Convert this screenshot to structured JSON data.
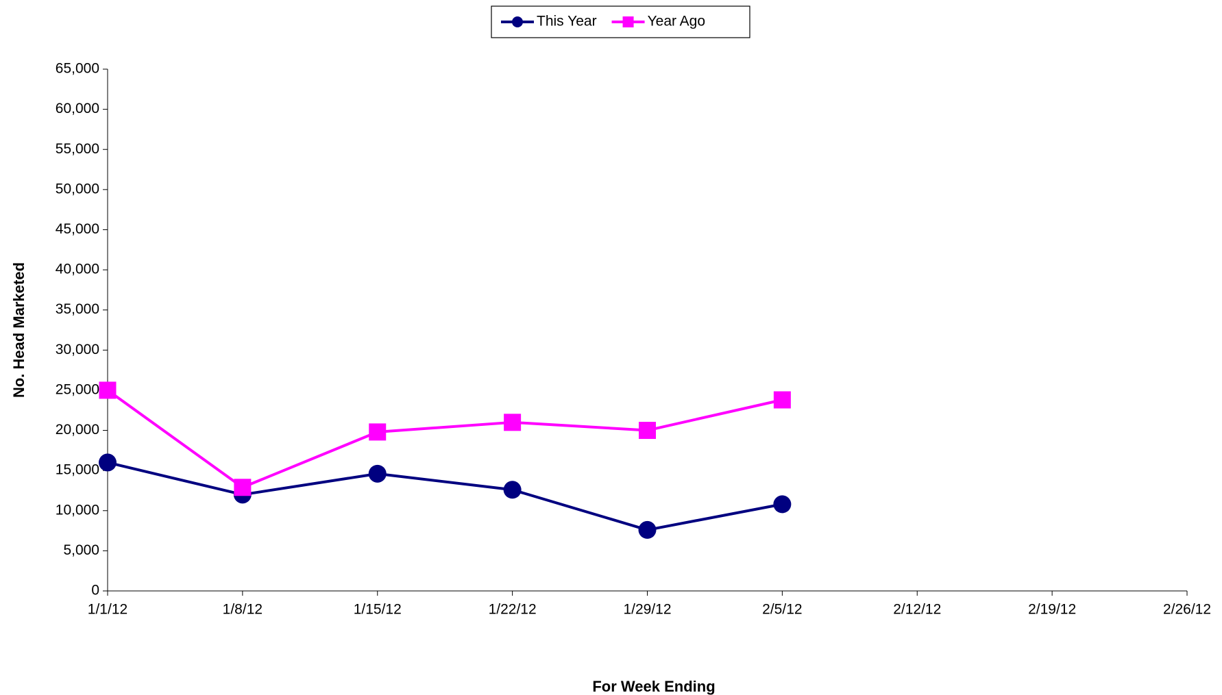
{
  "chart_data": {
    "type": "line",
    "x_label": "For Week Ending",
    "y_label": "No. Head Marketed",
    "x": [
      "1/1/12",
      "1/8/12",
      "1/15/12",
      "1/22/12",
      "1/29/12",
      "2/5/12",
      "2/12/12",
      "2/19/12",
      "2/26/12"
    ],
    "series": [
      {
        "name": "This Year",
        "color": "#000080",
        "marker": "circle",
        "values": [
          16000,
          12000,
          14600,
          12600,
          7600,
          10800,
          null,
          null,
          null
        ]
      },
      {
        "name": "Year Ago",
        "color": "#FF00FF",
        "marker": "square",
        "values": [
          25000,
          12900,
          19800,
          21000,
          20000,
          23800,
          null,
          null,
          null
        ]
      }
    ],
    "ylim": [
      0,
      65000
    ],
    "yticks": [
      0,
      {
        "value": 5000,
        "label": "5,000"
      },
      {
        "value": 10000,
        "label": "10,000"
      },
      {
        "value": 15000,
        "label": "15,000"
      },
      {
        "value": 20000,
        "label": "20,000"
      },
      {
        "value": 25000,
        "label": "25,000"
      },
      {
        "value": 30000,
        "label": "30,000"
      },
      {
        "value": 35000,
        "label": "35,000"
      },
      {
        "value": 40000,
        "label": "40,000"
      },
      {
        "value": 45000,
        "label": "45,000"
      },
      {
        "value": 50000,
        "label": "50,000"
      },
      {
        "value": 55000,
        "label": "55,000"
      },
      {
        "value": 60000,
        "label": "60,000"
      },
      {
        "value": 65000,
        "label": "65,000"
      }
    ],
    "grid": false,
    "legend": "top"
  }
}
